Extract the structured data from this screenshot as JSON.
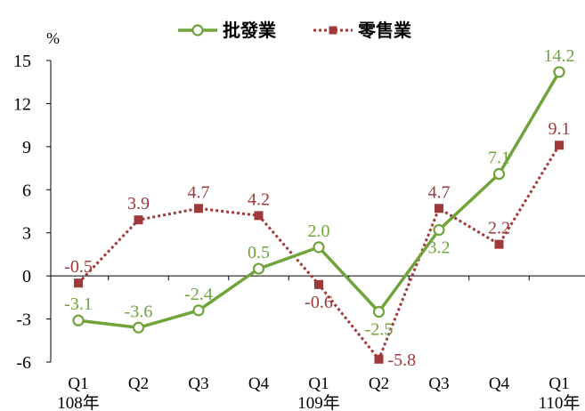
{
  "chart_data": {
    "type": "line",
    "unit_label": "%",
    "ylim": [
      -6,
      15
    ],
    "y_ticks": [
      "15",
      "12",
      "9",
      "6",
      "3",
      "0",
      "-3",
      "-6"
    ],
    "y_tick_values": [
      15,
      12,
      9,
      6,
      3,
      0,
      -3,
      -6
    ],
    "categories": [
      "Q1",
      "Q2",
      "Q3",
      "Q4",
      "Q1",
      "Q2",
      "Q3",
      "Q4",
      "Q1"
    ],
    "year_labels": [
      "108年",
      "",
      "",
      "",
      "109年",
      "",
      "",
      "",
      "110年"
    ],
    "legend_placement": "top-center",
    "grid": false,
    "series": [
      {
        "name": "批發業",
        "color": "#70a33a",
        "style": "solid",
        "marker": "open-circle",
        "values": [
          -3.1,
          -3.6,
          -2.4,
          0.5,
          2.0,
          -2.5,
          3.2,
          7.1,
          14.2
        ],
        "labels": [
          "-3.1",
          "-3.6",
          "-2.4",
          "0.5",
          "2.0",
          "-2.5",
          "3.2",
          "7.1",
          "14.2"
        ],
        "label_pos": [
          "above",
          "above",
          "above",
          "above",
          "above",
          "below",
          "below",
          "above",
          "above"
        ]
      },
      {
        "name": "零售業",
        "color": "#a0393a",
        "style": "dotted",
        "marker": "filled-square",
        "values": [
          -0.5,
          3.9,
          4.7,
          4.2,
          -0.6,
          -5.8,
          4.7,
          2.2,
          9.1
        ],
        "labels": [
          "-0.5",
          "3.9",
          "4.7",
          "4.2",
          "-0.6",
          "-5.8",
          "4.7",
          "2.2",
          "9.1"
        ],
        "label_pos": [
          "above",
          "above",
          "above",
          "above",
          "below",
          "right",
          "above",
          "above",
          "above"
        ]
      }
    ]
  }
}
